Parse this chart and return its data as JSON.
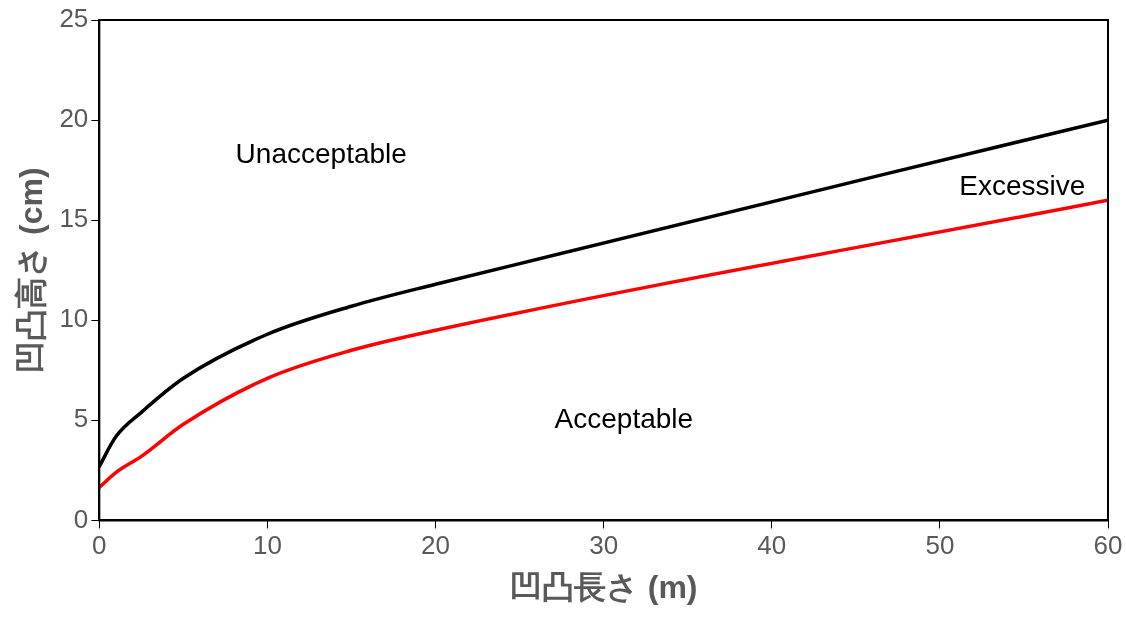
{
  "chart_data": {
    "type": "line",
    "xlabel": "凹凸長さ (m)",
    "ylabel": "凹凸高さ (cm)",
    "xlim": [
      0,
      60
    ],
    "xticks": [
      0,
      10,
      20,
      30,
      40,
      50,
      60
    ],
    "ylim": [
      0,
      25
    ],
    "yticks": [
      0,
      5,
      10,
      15,
      20,
      25
    ],
    "grid": false,
    "legend": false,
    "marker": "none",
    "line_style": "solid",
    "series": [
      {
        "color": "#000000",
        "x": [
          0,
          1,
          2.5,
          5,
          10,
          15,
          20,
          60
        ],
        "values": [
          2.7,
          4.2,
          5.4,
          7.1,
          9.3,
          10.7,
          11.8,
          20
        ]
      },
      {
        "color": "#ff0000",
        "x": [
          0,
          1,
          2.5,
          5,
          10,
          15,
          20,
          60
        ],
        "values": [
          1.65,
          2.4,
          3.2,
          4.8,
          7.1,
          8.5,
          9.5,
          16
        ]
      }
    ],
    "annotations": [
      "Unacceptable",
      "Excessive",
      "Acceptable"
    ]
  }
}
